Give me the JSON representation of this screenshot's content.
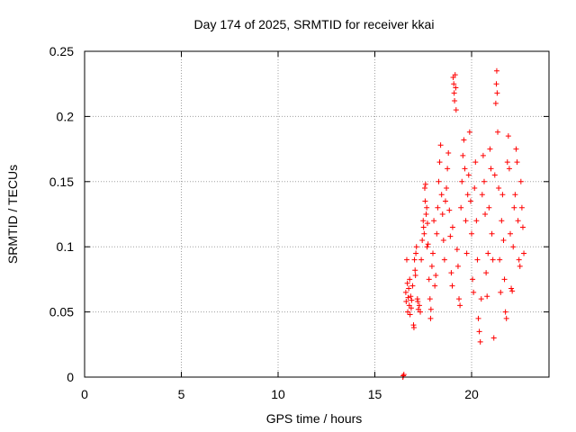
{
  "chart_data": {
    "type": "scatter",
    "title": "Day 174 of 2025, SRMTID for receiver kkai",
    "xlabel": "GPS time / hours",
    "ylabel": "SRMTID / TECUs",
    "xlim": [
      0,
      24
    ],
    "ylim": [
      0,
      0.25
    ],
    "xticks": [
      0,
      5,
      10,
      15,
      20
    ],
    "xtick_labels": [
      "0",
      "5",
      "10",
      "15",
      "20"
    ],
    "yticks": [
      0,
      0.05,
      0.1,
      0.15,
      0.2,
      0.25
    ],
    "ytick_labels": [
      "0",
      "0.05",
      "0.1",
      "0.15",
      "0.2",
      "0.25"
    ],
    "grid": true,
    "marker": "+",
    "color": "#ff0000",
    "series": [
      {
        "name": "SRMTID",
        "points": [
          [
            16.45,
            0.0
          ],
          [
            16.47,
            0.001
          ],
          [
            16.5,
            0.002
          ],
          [
            16.6,
            0.065
          ],
          [
            16.62,
            0.058
          ],
          [
            16.65,
            0.09
          ],
          [
            16.68,
            0.072
          ],
          [
            16.7,
            0.05
          ],
          [
            16.72,
            0.061
          ],
          [
            16.75,
            0.068
          ],
          [
            16.78,
            0.055
          ],
          [
            16.8,
            0.075
          ],
          [
            16.82,
            0.048
          ],
          [
            16.85,
            0.062
          ],
          [
            16.88,
            0.053
          ],
          [
            16.9,
            0.059
          ],
          [
            16.95,
            0.07
          ],
          [
            17.0,
            0.04
          ],
          [
            17.02,
            0.038
          ],
          [
            17.05,
            0.09
          ],
          [
            17.08,
            0.082
          ],
          [
            17.1,
            0.078
          ],
          [
            17.12,
            0.095
          ],
          [
            17.15,
            0.1
          ],
          [
            17.2,
            0.06
          ],
          [
            17.22,
            0.058
          ],
          [
            17.25,
            0.052
          ],
          [
            17.3,
            0.055
          ],
          [
            17.35,
            0.05
          ],
          [
            17.4,
            0.09
          ],
          [
            17.45,
            0.105
          ],
          [
            17.5,
            0.12
          ],
          [
            17.52,
            0.115
          ],
          [
            17.55,
            0.11
          ],
          [
            17.58,
            0.145
          ],
          [
            17.6,
            0.135
          ],
          [
            17.62,
            0.148
          ],
          [
            17.65,
            0.125
          ],
          [
            17.68,
            0.13
          ],
          [
            17.7,
            0.1
          ],
          [
            17.72,
            0.118
          ],
          [
            17.75,
            0.102
          ],
          [
            17.8,
            0.075
          ],
          [
            17.85,
            0.06
          ],
          [
            17.88,
            0.045
          ],
          [
            17.9,
            0.052
          ],
          [
            17.95,
            0.085
          ],
          [
            18.0,
            0.095
          ],
          [
            18.05,
            0.12
          ],
          [
            18.1,
            0.07
          ],
          [
            18.15,
            0.078
          ],
          [
            18.2,
            0.11
          ],
          [
            18.25,
            0.13
          ],
          [
            18.3,
            0.15
          ],
          [
            18.35,
            0.165
          ],
          [
            18.4,
            0.178
          ],
          [
            18.45,
            0.14
          ],
          [
            18.5,
            0.125
          ],
          [
            18.55,
            0.105
          ],
          [
            18.6,
            0.09
          ],
          [
            18.65,
            0.135
          ],
          [
            18.7,
            0.145
          ],
          [
            18.75,
            0.16
          ],
          [
            18.8,
            0.172
          ],
          [
            18.85,
            0.128
          ],
          [
            18.9,
            0.108
          ],
          [
            18.95,
            0.08
          ],
          [
            19.0,
            0.07
          ],
          [
            19.02,
            0.115
          ],
          [
            19.05,
            0.23
          ],
          [
            19.08,
            0.225
          ],
          [
            19.1,
            0.218
          ],
          [
            19.12,
            0.212
          ],
          [
            19.15,
            0.232
          ],
          [
            19.18,
            0.222
          ],
          [
            19.2,
            0.205
          ],
          [
            19.25,
            0.098
          ],
          [
            19.3,
            0.085
          ],
          [
            19.35,
            0.06
          ],
          [
            19.4,
            0.055
          ],
          [
            19.45,
            0.13
          ],
          [
            19.5,
            0.15
          ],
          [
            19.55,
            0.17
          ],
          [
            19.6,
            0.182
          ],
          [
            19.65,
            0.16
          ],
          [
            19.7,
            0.12
          ],
          [
            19.75,
            0.095
          ],
          [
            19.8,
            0.14
          ],
          [
            19.85,
            0.155
          ],
          [
            19.9,
            0.188
          ],
          [
            19.95,
            0.135
          ],
          [
            20.0,
            0.11
          ],
          [
            20.05,
            0.075
          ],
          [
            20.1,
            0.065
          ],
          [
            20.15,
            0.145
          ],
          [
            20.2,
            0.165
          ],
          [
            20.25,
            0.12
          ],
          [
            20.3,
            0.09
          ],
          [
            20.35,
            0.045
          ],
          [
            20.4,
            0.035
          ],
          [
            20.45,
            0.027
          ],
          [
            20.5,
            0.06
          ],
          [
            20.55,
            0.14
          ],
          [
            20.6,
            0.17
          ],
          [
            20.65,
            0.15
          ],
          [
            20.7,
            0.125
          ],
          [
            20.75,
            0.08
          ],
          [
            20.8,
            0.062
          ],
          [
            20.85,
            0.095
          ],
          [
            20.9,
            0.13
          ],
          [
            20.95,
            0.175
          ],
          [
            21.0,
            0.16
          ],
          [
            21.05,
            0.11
          ],
          [
            21.1,
            0.09
          ],
          [
            21.15,
            0.03
          ],
          [
            21.2,
            0.155
          ],
          [
            21.25,
            0.21
          ],
          [
            21.28,
            0.225
          ],
          [
            21.3,
            0.235
          ],
          [
            21.32,
            0.218
          ],
          [
            21.35,
            0.188
          ],
          [
            21.4,
            0.145
          ],
          [
            21.45,
            0.09
          ],
          [
            21.5,
            0.065
          ],
          [
            21.55,
            0.12
          ],
          [
            21.6,
            0.14
          ],
          [
            21.65,
            0.105
          ],
          [
            21.7,
            0.075
          ],
          [
            21.75,
            0.05
          ],
          [
            21.8,
            0.045
          ],
          [
            21.85,
            0.165
          ],
          [
            21.9,
            0.185
          ],
          [
            21.95,
            0.16
          ],
          [
            22.0,
            0.11
          ],
          [
            22.05,
            0.068
          ],
          [
            22.1,
            0.066
          ],
          [
            22.15,
            0.1
          ],
          [
            22.2,
            0.13
          ],
          [
            22.25,
            0.14
          ],
          [
            22.3,
            0.175
          ],
          [
            22.35,
            0.165
          ],
          [
            22.4,
            0.12
          ],
          [
            22.45,
            0.09
          ],
          [
            22.5,
            0.085
          ],
          [
            22.55,
            0.15
          ],
          [
            22.6,
            0.13
          ],
          [
            22.65,
            0.115
          ],
          [
            22.7,
            0.095
          ]
        ]
      }
    ]
  }
}
